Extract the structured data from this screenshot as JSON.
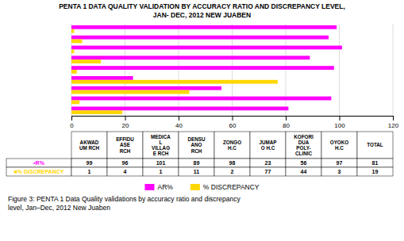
{
  "chart_data": {
    "type": "bar",
    "orientation": "horizontal",
    "title": "PENTA 1 DATA QUALITY VALIDATION BY ACCURACY RATIO AND DISCREPANCY LEVEL,\nJAN- DEC, 2012 NEW JUABEN",
    "categories": [
      "AKWAD\nUM RCH",
      "EFFIDU\nASE\nRCH",
      "MEDICA\nL\nVILLAG\nE RCH",
      "DENSU\nANO\nRCH",
      "ZONGO\nH.C",
      "JUMAP\nO H.C",
      "KOFORI\nDUA\nPOLY-\nCLINIC",
      "OYOKO\nH.C",
      "TOTAL"
    ],
    "series": [
      {
        "name": "AR%",
        "color": "#FF00FF",
        "values": [
          99,
          96,
          101,
          89,
          98,
          23,
          56,
          97,
          81
        ]
      },
      {
        "name": "% DISCREPANCY",
        "color": "#FFD700",
        "values": [
          1,
          4,
          1,
          11,
          2,
          77,
          44,
          3,
          19
        ]
      }
    ],
    "xlim": [
      0,
      120
    ],
    "xticks": [
      0,
      20,
      40,
      60,
      80,
      100,
      120
    ],
    "grid": true,
    "tick_labels": "x",
    "annotations": [
      "▪R%",
      "■% DISCREPANCY"
    ],
    "caption": "Figure 3: PENTA 1 Data Quality validations by accuracy ratio and discrepancy\nlevel, Jan–Dec, 2012 New Juaben"
  }
}
